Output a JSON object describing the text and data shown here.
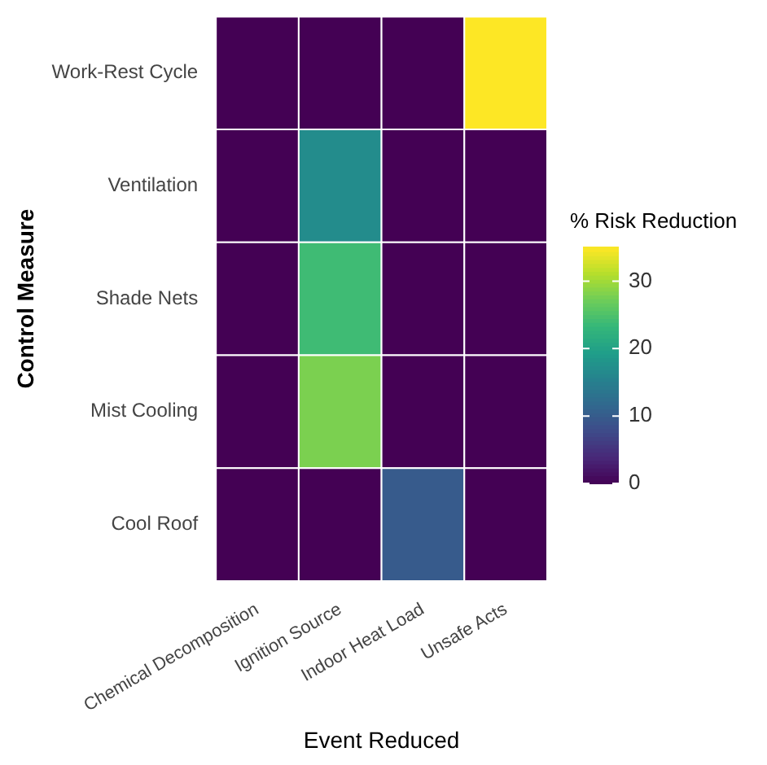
{
  "chart_data": {
    "type": "heatmap",
    "xlabel": "Event Reduced",
    "ylabel": "Control Measure",
    "clabel": "% Risk Reduction",
    "categories": [
      "Chemical Decomposition",
      "Ignition Source",
      "Indoor Heat Load",
      "Unsafe Acts"
    ],
    "y_categories": [
      "Work-Rest Cycle",
      "Ventilation",
      "Shade Nets",
      "Mist Cooling",
      "Cool Roof"
    ],
    "cells": [
      [
        0,
        0,
        0,
        35
      ],
      [
        0,
        17,
        0,
        0
      ],
      [
        0,
        24,
        0,
        0
      ],
      [
        0,
        28,
        0,
        0
      ],
      [
        0,
        0,
        10,
        0
      ]
    ],
    "clim": [
      0,
      35
    ],
    "cticks": [
      0,
      10,
      20,
      30
    ]
  }
}
